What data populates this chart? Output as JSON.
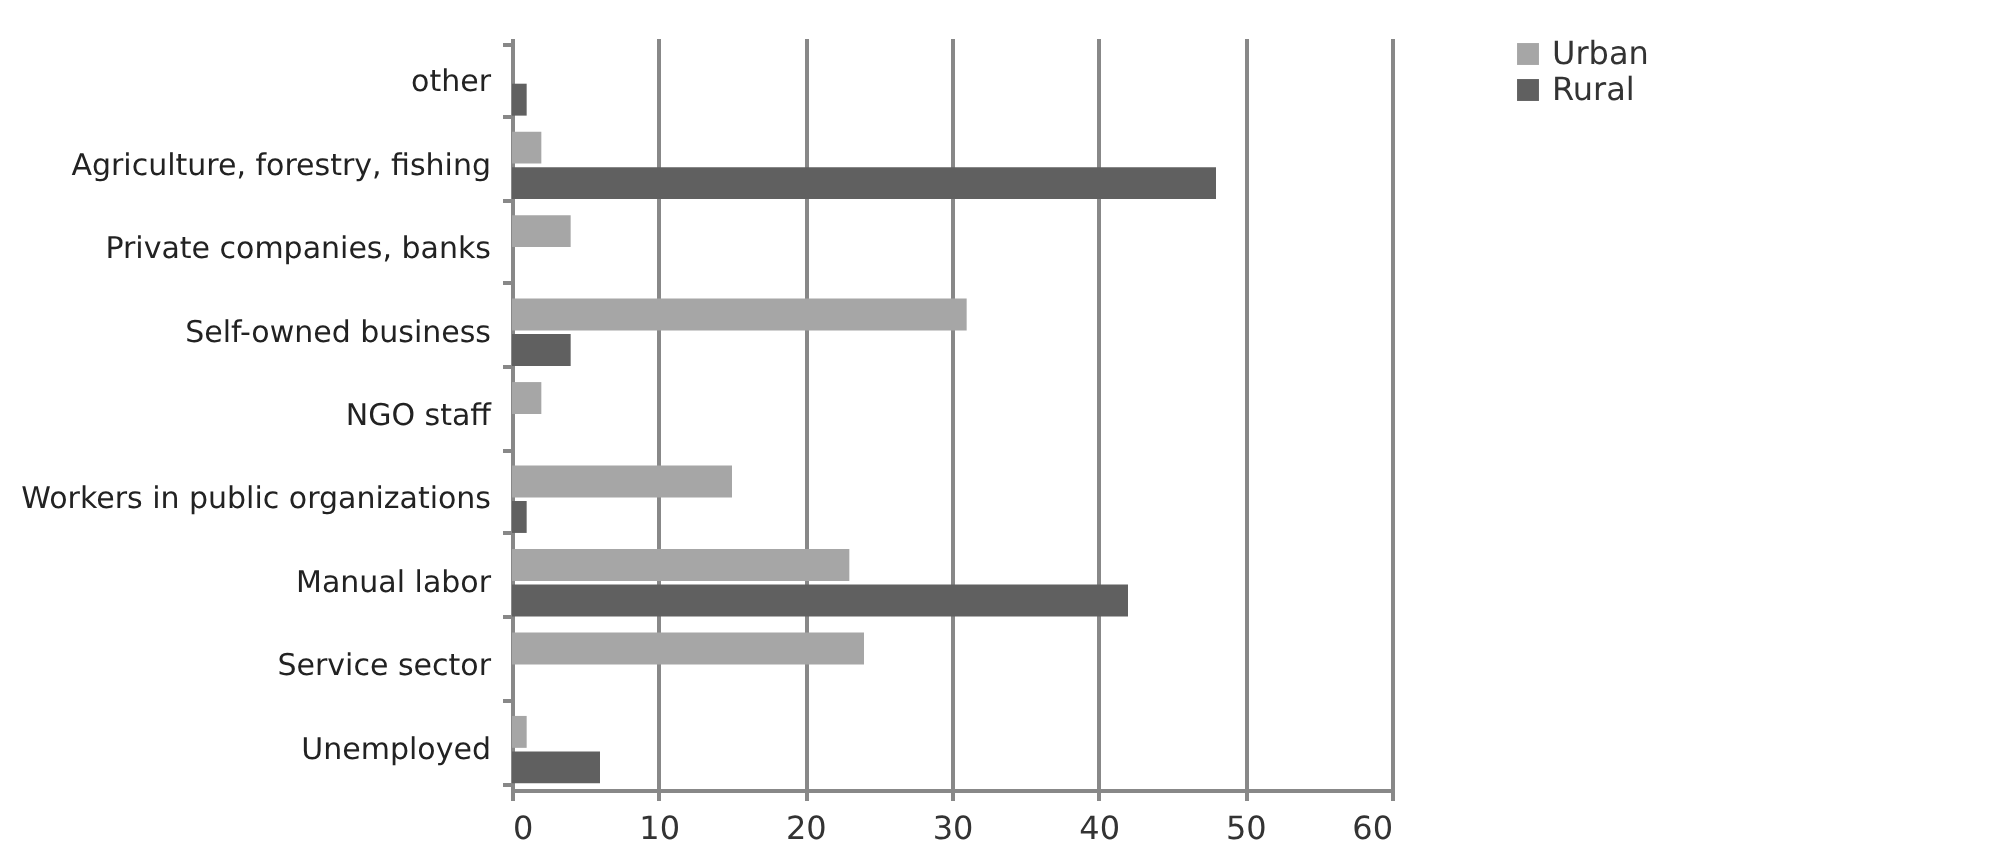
{
  "chart_data": {
    "type": "bar",
    "orientation": "horizontal",
    "categories": [
      "other",
      "Agriculture, forestry, fishing",
      "Private companies, banks",
      "Self-owned business",
      "NGO staff",
      "Workers in public organizations",
      "Manual labor",
      "Service sector",
      "Unemployed"
    ],
    "series": [
      {
        "name": "Urban",
        "color": "#a6a6a6",
        "values": [
          0,
          2,
          4,
          31,
          2,
          15,
          23,
          24,
          1
        ]
      },
      {
        "name": "Rural",
        "color": "#606060",
        "values": [
          1,
          48,
          0,
          4,
          0,
          1,
          42,
          0,
          6
        ]
      }
    ],
    "xlim": [
      0,
      60
    ],
    "xticks": [
      0,
      10,
      20,
      30,
      40,
      50,
      60
    ],
    "grid": "x",
    "legend": "right"
  }
}
